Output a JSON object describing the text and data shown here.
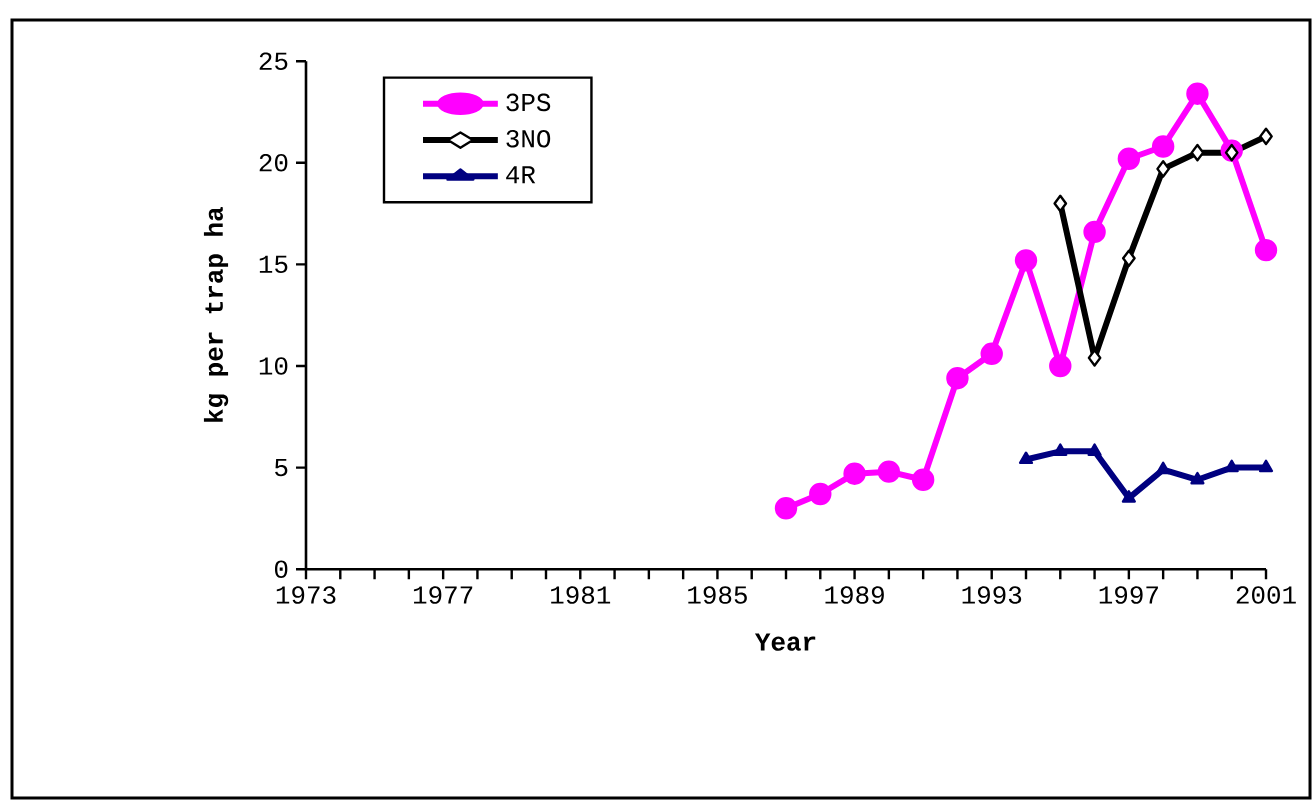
{
  "chart_data": {
    "type": "line",
    "xlabel": "Year",
    "ylabel": "kg per trap ha",
    "x": [
      1987,
      1988,
      1989,
      1990,
      1991,
      1992,
      1993,
      1994,
      1995,
      1996,
      1997,
      1998,
      1999,
      2000,
      2001
    ],
    "series": [
      {
        "name": "3PS",
        "color": "#ff00ff",
        "marker": "circle",
        "values": [
          3.0,
          3.7,
          4.7,
          4.8,
          4.4,
          9.4,
          10.6,
          15.2,
          10.0,
          16.6,
          20.2,
          20.8,
          23.4,
          20.6,
          15.7
        ]
      },
      {
        "name": "3NO",
        "color": "#000000",
        "marker": "diamond",
        "values": [
          null,
          null,
          null,
          null,
          null,
          null,
          null,
          null,
          18.0,
          10.4,
          15.3,
          19.7,
          20.5,
          20.5,
          21.3
        ]
      },
      {
        "name": "4R",
        "color": "#000080",
        "marker": "triangle",
        "values": [
          null,
          null,
          null,
          null,
          null,
          null,
          null,
          5.4,
          5.8,
          5.8,
          3.5,
          4.9,
          4.4,
          5.0,
          5.0
        ]
      }
    ],
    "xlim": [
      1973,
      2001
    ],
    "ylim": [
      0,
      25
    ],
    "xticks": [
      1973,
      {
        "value": 1974,
        "label": null
      },
      {
        "value": 1975,
        "label": null
      },
      {
        "value": 1976,
        "label": null
      },
      1977,
      {
        "value": 1978,
        "label": null
      },
      {
        "value": 1979,
        "label": null
      },
      {
        "value": 1980,
        "label": null
      },
      1981,
      {
        "value": 1982,
        "label": null
      },
      {
        "value": 1983,
        "label": null
      },
      {
        "value": 1984,
        "label": null
      },
      1985,
      {
        "value": 1986,
        "label": null
      },
      {
        "value": 1987,
        "label": null
      },
      {
        "value": 1988,
        "label": null
      },
      1989,
      {
        "value": 1990,
        "label": null
      },
      {
        "value": 1991,
        "label": null
      },
      {
        "value": 1992,
        "label": null
      },
      1993,
      {
        "value": 1994,
        "label": null
      },
      {
        "value": 1995,
        "label": null
      },
      {
        "value": 1996,
        "label": null
      },
      1997,
      {
        "value": 1998,
        "label": null
      },
      {
        "value": 1999,
        "label": null
      },
      {
        "value": 2000,
        "label": null
      },
      2001
    ],
    "yticks": [
      0,
      5,
      10,
      15,
      20,
      25
    ],
    "grid": false,
    "legend": "top left"
  }
}
